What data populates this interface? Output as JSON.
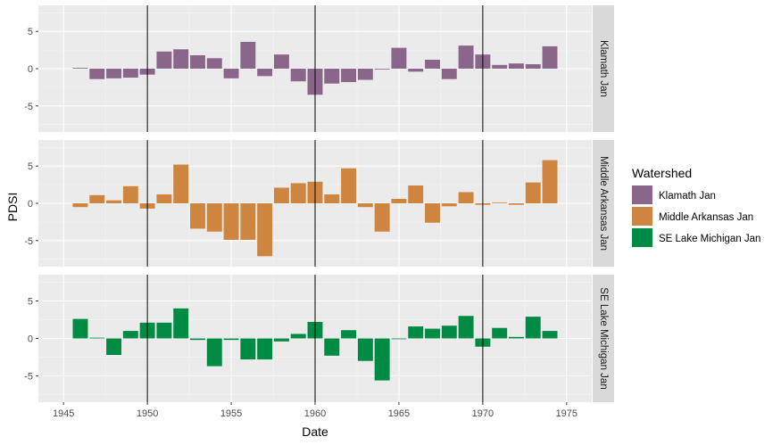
{
  "chart_data": {
    "type": "bar",
    "facet_layout": "rows",
    "xlabel": "Date",
    "ylabel": "PDSI",
    "xlim": [
      1943.5,
      1976.5
    ],
    "x_ticks": [
      1945,
      1950,
      1955,
      1960,
      1965,
      1970,
      1975
    ],
    "ylim": [
      -8.5,
      8.5
    ],
    "y_ticks": [
      -5,
      0,
      5
    ],
    "vlines": [
      1950,
      1960,
      1970
    ],
    "grid": true,
    "legend": {
      "title": "Watershed",
      "position": "right",
      "entries": [
        "Klamath Jan",
        "Middle Arkansas Jan",
        "SE Lake Michigan Jan"
      ]
    },
    "x": [
      1946,
      1947,
      1948,
      1949,
      1950,
      1951,
      1952,
      1953,
      1954,
      1955,
      1956,
      1957,
      1958,
      1959,
      1960,
      1961,
      1962,
      1963,
      1964,
      1965,
      1966,
      1967,
      1968,
      1969,
      1970,
      1971,
      1972,
      1973,
      1974
    ],
    "series": [
      {
        "name": "Klamath Jan",
        "color": "#8B668B",
        "values": [
          0.1,
          -1.4,
          -1.3,
          -1.2,
          -0.8,
          2.3,
          2.6,
          1.8,
          1.4,
          -1.3,
          3.6,
          -1.0,
          1.9,
          -1.7,
          -3.5,
          -2.0,
          -1.8,
          -1.5,
          -0.1,
          2.8,
          -0.4,
          1.2,
          -1.4,
          3.1,
          1.9,
          0.5,
          0.7,
          0.6,
          3.0
        ]
      },
      {
        "name": "Middle Arkansas Jan",
        "color": "#CD853F",
        "values": [
          -0.5,
          1.1,
          0.4,
          2.3,
          -0.7,
          1.2,
          5.2,
          -3.4,
          -3.8,
          -4.9,
          -4.9,
          -7.1,
          2.1,
          2.7,
          2.9,
          1.2,
          4.7,
          -0.5,
          -3.8,
          0.6,
          2.4,
          -2.6,
          -0.4,
          1.5,
          -0.2,
          0.1,
          -0.2,
          2.8,
          5.8
        ]
      },
      {
        "name": "SE Lake Michigan Jan",
        "color": "#008B45",
        "values": [
          2.6,
          0.1,
          -2.2,
          1.0,
          2.1,
          2.1,
          4.0,
          -0.2,
          -3.7,
          -0.2,
          -2.8,
          -2.8,
          -0.4,
          0.6,
          2.2,
          -2.3,
          1.1,
          -3.0,
          -5.6,
          -0.1,
          1.6,
          1.3,
          1.7,
          3.0,
          -1.1,
          1.4,
          0.2,
          2.9,
          1.0
        ]
      }
    ]
  }
}
